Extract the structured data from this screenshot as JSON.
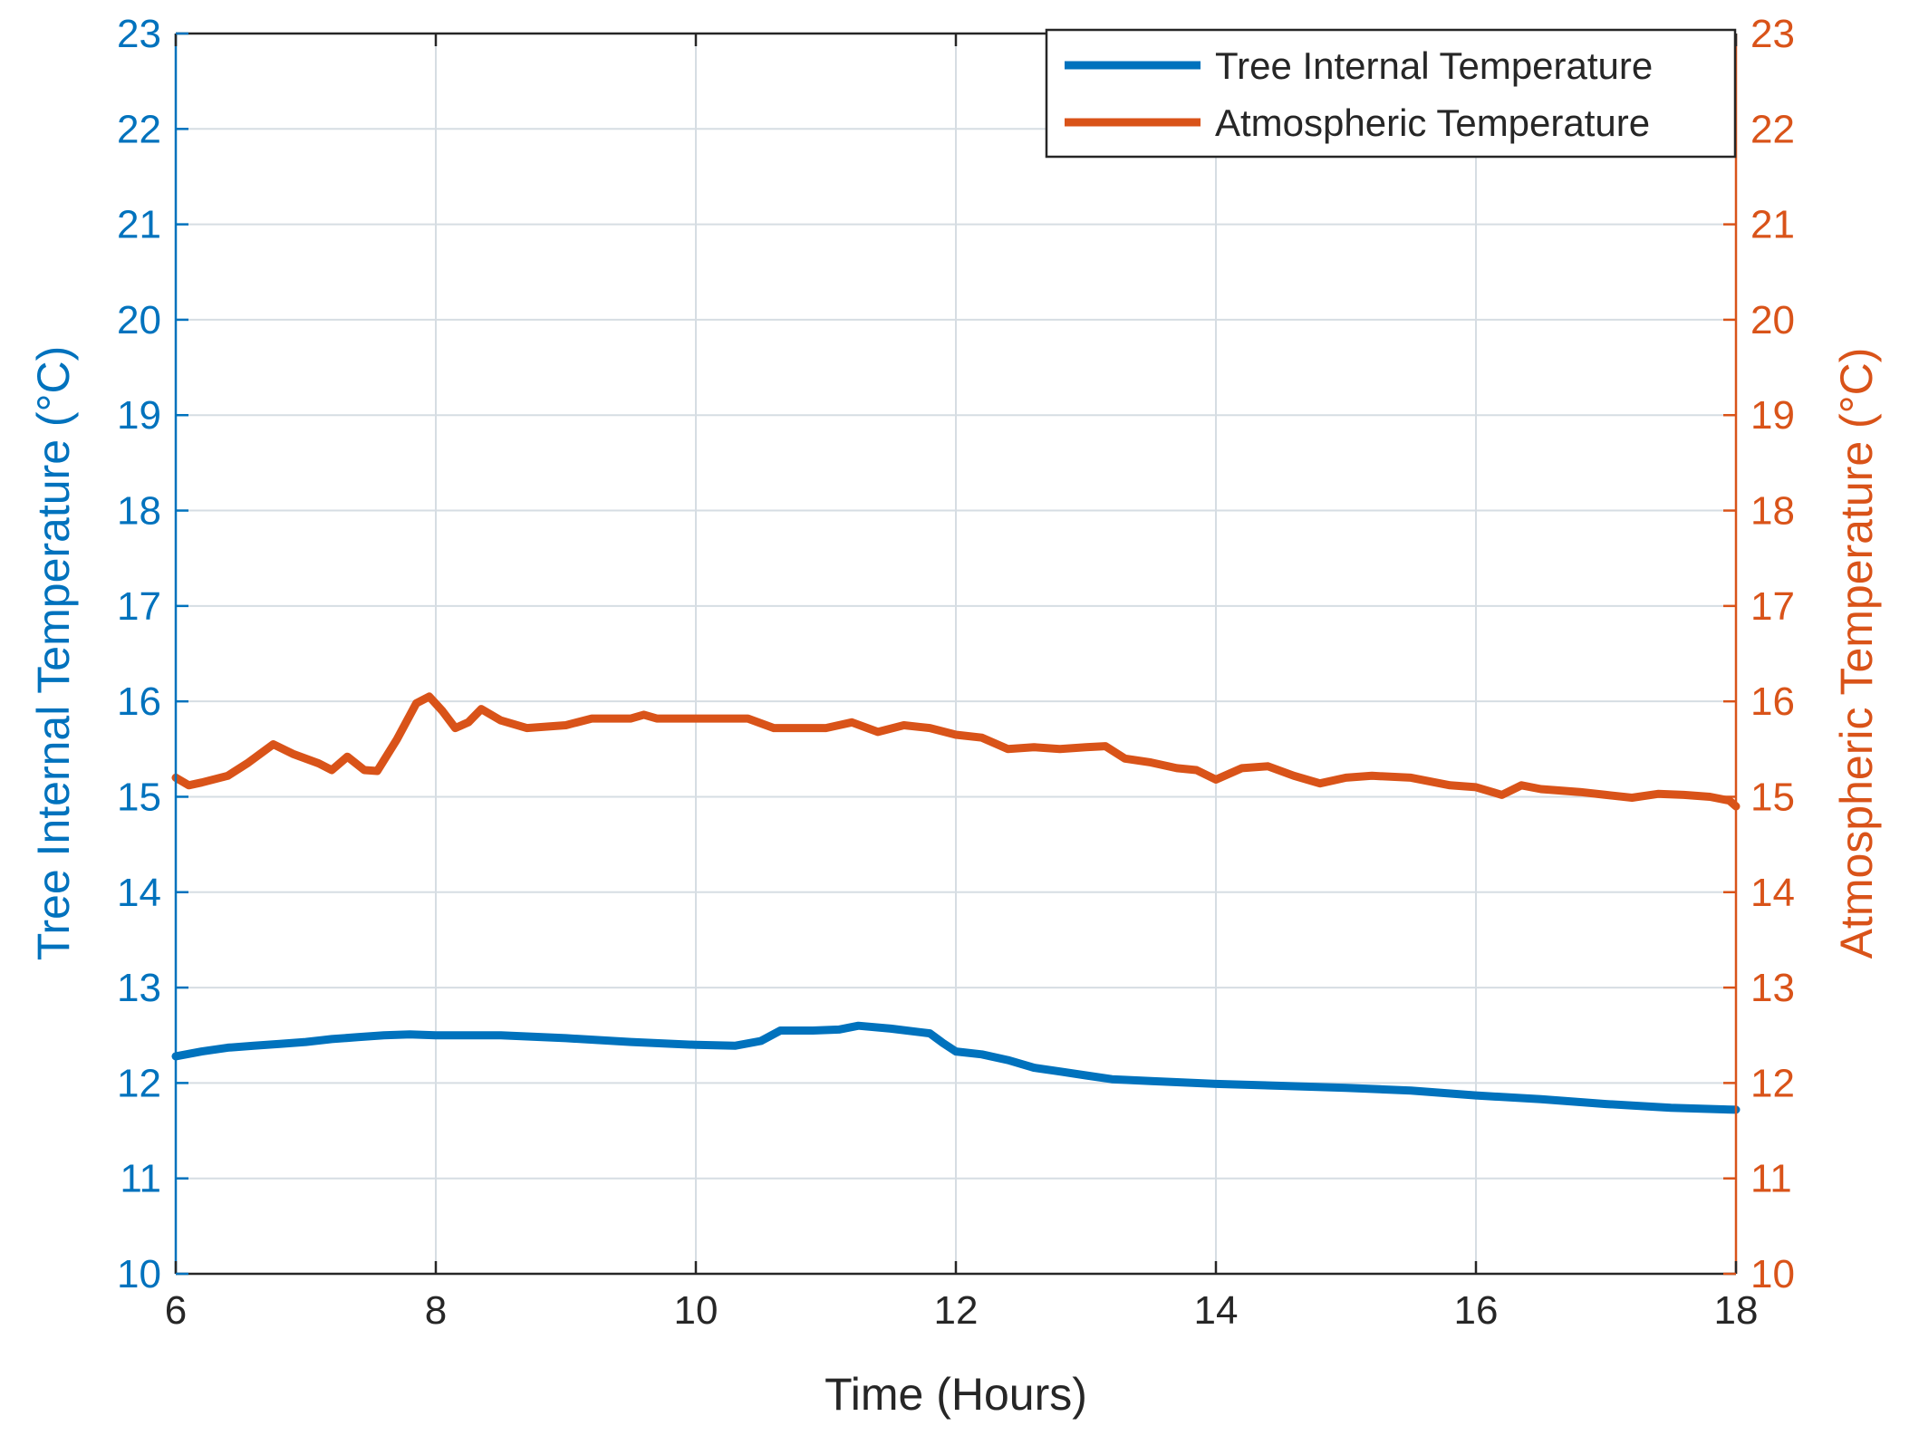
{
  "chart_data": {
    "type": "line",
    "xlabel": "Time (Hours)",
    "ylabel_left": "Tree Internal Temperature (°C)",
    "ylabel_right": "Atmospheric Temperature (°C)",
    "xlim": [
      6,
      18
    ],
    "ylim_left": [
      10,
      23
    ],
    "ylim_right": [
      10,
      23
    ],
    "x_ticks": [
      "6",
      "8",
      "10",
      "12",
      "14",
      "16",
      "18"
    ],
    "y_ticks_left": [
      "10",
      "11",
      "12",
      "13",
      "14",
      "15",
      "16",
      "17",
      "18",
      "19",
      "20",
      "21",
      "22",
      "23"
    ],
    "y_ticks_right": [
      "10",
      "11",
      "12",
      "13",
      "14",
      "15",
      "16",
      "17",
      "18",
      "19",
      "20",
      "21",
      "22",
      "23"
    ],
    "grid": true,
    "legend_position": "top-right",
    "colors": {
      "left_axis": "#0072BD",
      "right_axis": "#D95319",
      "grid": "#d6dde3",
      "axis_x": "#262626"
    },
    "series": [
      {
        "name": "Tree Internal Temperature",
        "axis": "left",
        "color": "#0072BD",
        "points": [
          [
            6.0,
            12.28
          ],
          [
            6.2,
            12.33
          ],
          [
            6.4,
            12.37
          ],
          [
            6.6,
            12.39
          ],
          [
            6.8,
            12.41
          ],
          [
            7.0,
            12.43
          ],
          [
            7.2,
            12.46
          ],
          [
            7.4,
            12.48
          ],
          [
            7.6,
            12.5
          ],
          [
            7.8,
            12.51
          ],
          [
            8.0,
            12.5
          ],
          [
            8.5,
            12.5
          ],
          [
            9.0,
            12.47
          ],
          [
            9.5,
            12.43
          ],
          [
            10.0,
            12.4
          ],
          [
            10.3,
            12.39
          ],
          [
            10.5,
            12.44
          ],
          [
            10.65,
            12.55
          ],
          [
            10.9,
            12.55
          ],
          [
            11.1,
            12.56
          ],
          [
            11.25,
            12.6
          ],
          [
            11.5,
            12.57
          ],
          [
            11.8,
            12.52
          ],
          [
            11.9,
            12.42
          ],
          [
            12.0,
            12.33
          ],
          [
            12.2,
            12.3
          ],
          [
            12.4,
            12.24
          ],
          [
            12.6,
            12.16
          ],
          [
            12.8,
            12.12
          ],
          [
            13.0,
            12.08
          ],
          [
            13.2,
            12.04
          ],
          [
            13.5,
            12.02
          ],
          [
            14.0,
            11.99
          ],
          [
            14.5,
            11.97
          ],
          [
            15.0,
            11.95
          ],
          [
            15.5,
            11.92
          ],
          [
            16.0,
            11.87
          ],
          [
            16.5,
            11.83
          ],
          [
            17.0,
            11.78
          ],
          [
            17.5,
            11.74
          ],
          [
            18.0,
            11.72
          ]
        ]
      },
      {
        "name": "Atmospheric Temperature",
        "axis": "right",
        "color": "#D95319",
        "points": [
          [
            6.0,
            15.2
          ],
          [
            6.1,
            15.12
          ],
          [
            6.2,
            15.15
          ],
          [
            6.4,
            15.22
          ],
          [
            6.55,
            15.35
          ],
          [
            6.75,
            15.55
          ],
          [
            6.9,
            15.45
          ],
          [
            7.1,
            15.35
          ],
          [
            7.2,
            15.28
          ],
          [
            7.32,
            15.42
          ],
          [
            7.45,
            15.28
          ],
          [
            7.55,
            15.27
          ],
          [
            7.7,
            15.6
          ],
          [
            7.85,
            15.98
          ],
          [
            7.95,
            16.05
          ],
          [
            8.05,
            15.9
          ],
          [
            8.15,
            15.72
          ],
          [
            8.25,
            15.78
          ],
          [
            8.35,
            15.92
          ],
          [
            8.5,
            15.8
          ],
          [
            8.7,
            15.72
          ],
          [
            9.0,
            15.75
          ],
          [
            9.2,
            15.82
          ],
          [
            9.5,
            15.82
          ],
          [
            9.6,
            15.86
          ],
          [
            9.7,
            15.82
          ],
          [
            10.0,
            15.82
          ],
          [
            10.4,
            15.82
          ],
          [
            10.6,
            15.72
          ],
          [
            11.0,
            15.72
          ],
          [
            11.2,
            15.78
          ],
          [
            11.4,
            15.68
          ],
          [
            11.6,
            15.75
          ],
          [
            11.8,
            15.72
          ],
          [
            12.0,
            15.65
          ],
          [
            12.2,
            15.62
          ],
          [
            12.4,
            15.5
          ],
          [
            12.6,
            15.52
          ],
          [
            12.8,
            15.5
          ],
          [
            13.0,
            15.52
          ],
          [
            13.15,
            15.53
          ],
          [
            13.3,
            15.4
          ],
          [
            13.5,
            15.36
          ],
          [
            13.7,
            15.3
          ],
          [
            13.85,
            15.28
          ],
          [
            14.0,
            15.18
          ],
          [
            14.2,
            15.3
          ],
          [
            14.4,
            15.32
          ],
          [
            14.6,
            15.22
          ],
          [
            14.8,
            15.14
          ],
          [
            15.0,
            15.2
          ],
          [
            15.2,
            15.22
          ],
          [
            15.5,
            15.2
          ],
          [
            15.8,
            15.12
          ],
          [
            16.0,
            15.1
          ],
          [
            16.2,
            15.02
          ],
          [
            16.35,
            15.12
          ],
          [
            16.5,
            15.08
          ],
          [
            16.8,
            15.05
          ],
          [
            17.0,
            15.02
          ],
          [
            17.2,
            14.99
          ],
          [
            17.4,
            15.03
          ],
          [
            17.6,
            15.02
          ],
          [
            17.8,
            15.0
          ],
          [
            17.95,
            14.96
          ],
          [
            18.0,
            14.9
          ]
        ]
      }
    ]
  }
}
